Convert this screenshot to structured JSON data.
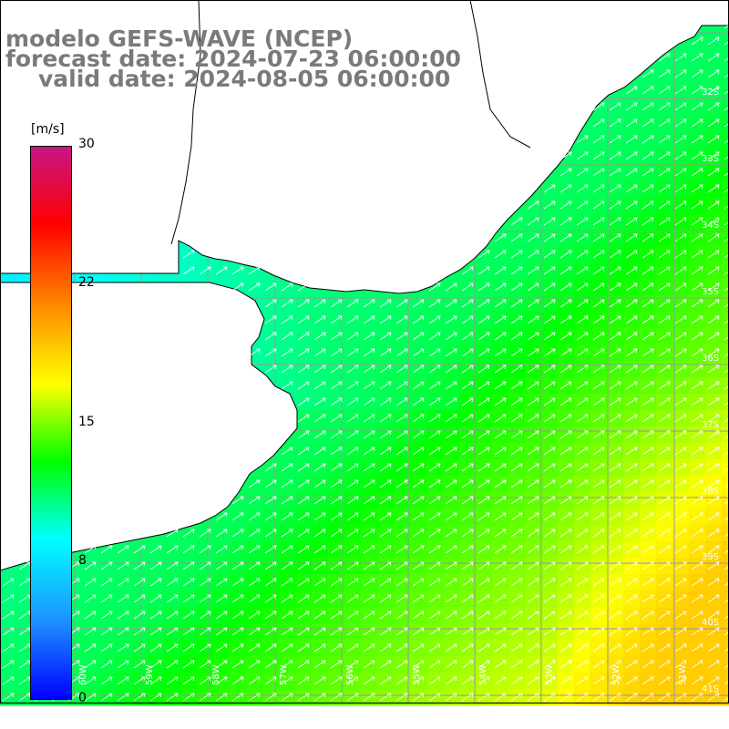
{
  "title": {
    "line1": "modelo GEFS-WAVE (NCEP)",
    "line2": "forecast date: 2024-07-23 06:00:00",
    "line3": "valid date: 2024-08-05 06:00:00"
  },
  "colorbar": {
    "units": "[m/s]",
    "min": 0,
    "max": 30,
    "ticks": [
      "30",
      "22",
      "15",
      "8",
      "0"
    ],
    "colors": [
      "#0000ff",
      "#1e90ff",
      "#00ffff",
      "#00ff00",
      "#ffff00",
      "#ff8c00",
      "#ff0000",
      "#c71585"
    ]
  },
  "map": {
    "lon_range": [
      -61,
      -50
    ],
    "lat_range": [
      -41,
      -31
    ],
    "lat_labels": [
      "32S",
      "33S",
      "34S",
      "35S",
      "36S",
      "37S",
      "38S",
      "39S",
      "40S",
      "41S"
    ],
    "lon_labels": [
      "60W",
      "59W",
      "58W",
      "57W",
      "56W",
      "55W",
      "54W",
      "53W",
      "52W",
      "51W"
    ],
    "land_color": "#ffffff",
    "grid_color": "#999999",
    "arrow_color": "#ffffff",
    "wind_direction": "toward northeast"
  },
  "chart_data": {
    "type": "heatmap",
    "variable": "wind speed",
    "units": "m/s",
    "value_range": [
      0,
      30
    ],
    "approximate_field": {
      "coastal_zone": 8,
      "mid_shelf": 12,
      "offshore_south": 17,
      "offshore_southeast": 19
    }
  }
}
